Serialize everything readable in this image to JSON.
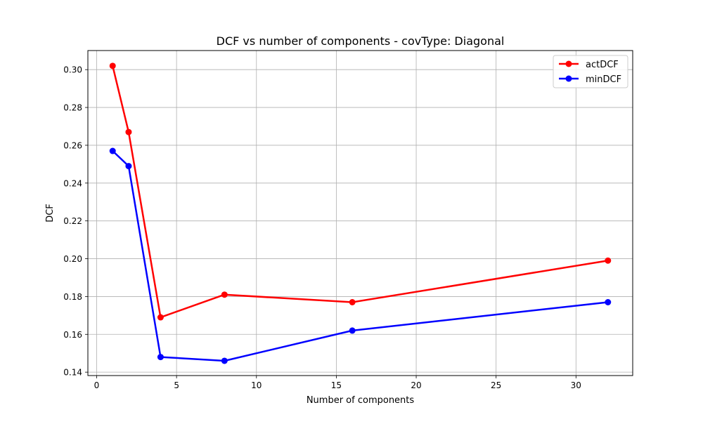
{
  "chart_data": {
    "type": "line",
    "title": "DCF vs number of components - covType: Diagonal",
    "xlabel": "Number of components",
    "ylabel": "DCF",
    "xlim": [
      -0.55,
      33.55
    ],
    "ylim": [
      0.1382,
      0.3101
    ],
    "xticks": [
      0,
      5,
      10,
      15,
      20,
      25,
      30
    ],
    "yticks": [
      0.14,
      0.16,
      0.18,
      0.2,
      0.22,
      0.24,
      0.26,
      0.28,
      0.3
    ],
    "x_tick_labels": [
      "0",
      "5",
      "10",
      "15",
      "20",
      "25",
      "30"
    ],
    "y_tick_labels": [
      "0.14",
      "0.16",
      "0.18",
      "0.20",
      "0.22",
      "0.24",
      "0.26",
      "0.28",
      "0.30"
    ],
    "grid": true,
    "legend_position": "top-right",
    "x": [
      1,
      2,
      4,
      8,
      16,
      32
    ],
    "series": [
      {
        "name": "actDCF",
        "color": "#ff0000",
        "marker": "circle",
        "values": [
          0.302,
          0.267,
          0.169,
          0.181,
          0.177,
          0.199
        ]
      },
      {
        "name": "minDCF",
        "color": "#0000ff",
        "marker": "circle",
        "values": [
          0.257,
          0.249,
          0.148,
          0.146,
          0.162,
          0.177
        ]
      }
    ]
  }
}
